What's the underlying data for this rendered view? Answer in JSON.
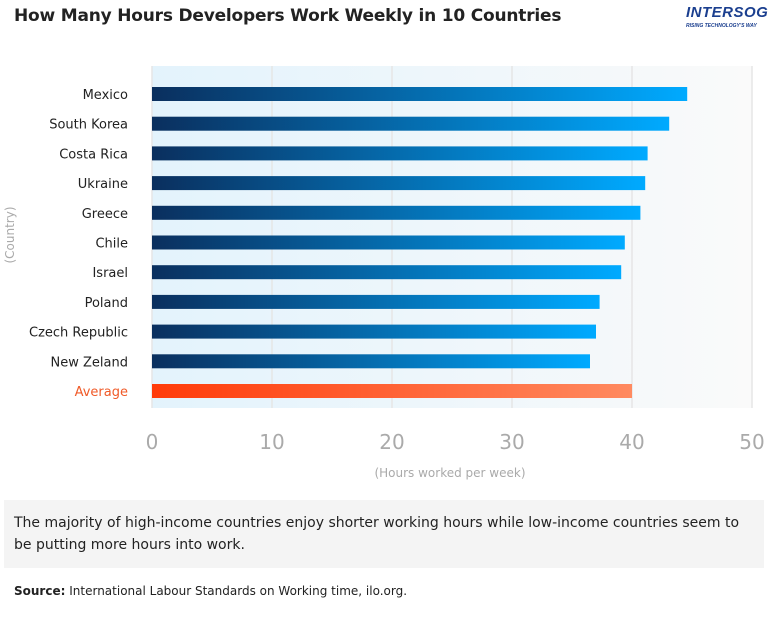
{
  "title": "How Many Hours Developers Work Weekly in 10 Countries",
  "logo": {
    "text": "INTERSOG",
    "tagline": "RISING TECHNOLOGY'S WAY"
  },
  "note": "The majority of high-income countries enjoy shorter working hours while low-income countries seem to be putting more hours into work.",
  "source": {
    "label": "Source:",
    "text": "International Labour Standards on Working time, ilo.org."
  },
  "colors": {
    "bar_start": "#0a2f5e",
    "bar_end": "#00aaff",
    "avg_start": "#ff3b0a",
    "avg_end": "#ff8a60",
    "avg_label": "#f05a28"
  },
  "chart_data": {
    "type": "bar",
    "orientation": "horizontal",
    "categories": [
      "Mexico",
      "South Korea",
      "Costa Rica",
      "Ukraine",
      "Greece",
      "Chile",
      "Israel",
      "Poland",
      "Czech Republic",
      "New Zeland",
      "Average"
    ],
    "values": [
      44.6,
      43.1,
      41.3,
      41.1,
      40.7,
      39.4,
      39.1,
      37.3,
      37.0,
      36.5,
      40.0
    ],
    "xlabel": "(Hours worked per week)",
    "ylabel": "(Country)",
    "xlim": [
      0,
      50
    ],
    "xticks": [
      0,
      10,
      20,
      30,
      40,
      50
    ],
    "grid": true
  }
}
